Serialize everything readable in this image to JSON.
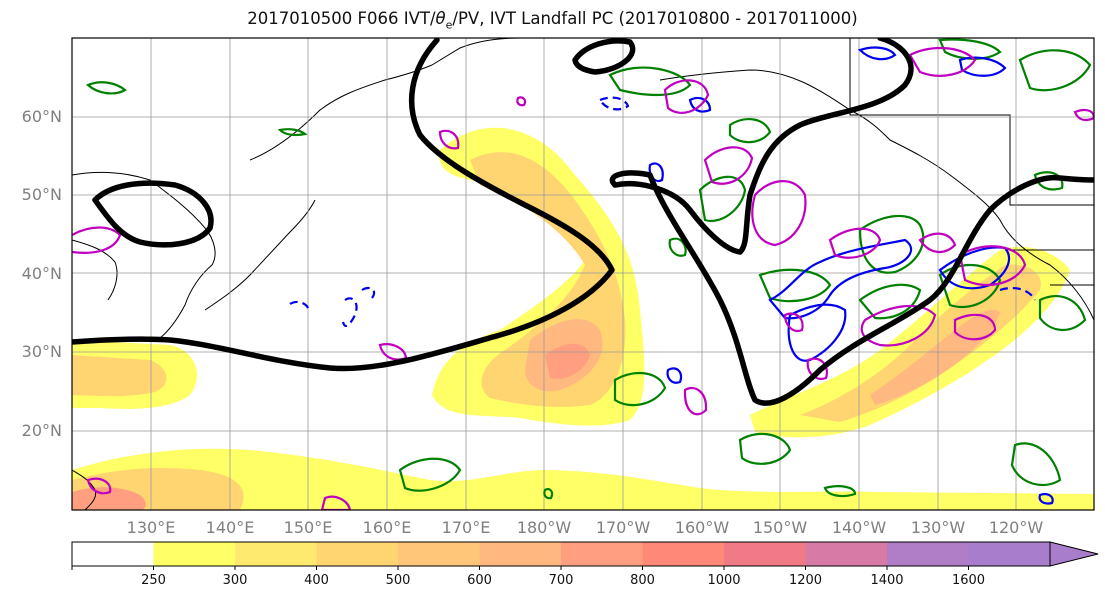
{
  "title": {
    "prefix": "2017010500 F066 IVT/",
    "theta": "θ",
    "sub": "e",
    "suffix": "/PV, IVT Landfall PC (2017010800 - 2017011000)"
  },
  "map": {
    "lat_labels": [
      "60°N",
      "50°N",
      "40°N",
      "30°N",
      "20°N"
    ],
    "lon_labels": [
      "130°E",
      "140°E",
      "150°E",
      "160°E",
      "170°E",
      "180°W",
      "170°W",
      "160°W",
      "150°W",
      "140°W",
      "130°W",
      "120°W"
    ],
    "grid": true,
    "contour_colors": {
      "pv": "#000000",
      "theta_e_warm": "#c000c0",
      "theta_e_cold": "#0000ee",
      "landfall": "#008000"
    }
  },
  "colorbar": {
    "ticks": [
      "250",
      "300",
      "400",
      "500",
      "600",
      "700",
      "800",
      "1000",
      "1200",
      "1400",
      "1600"
    ],
    "colors": [
      "#ffffff",
      "#ffff66",
      "#ffea70",
      "#ffd572",
      "#ffc67a",
      "#ffb880",
      "#ff9f80",
      "#ff8878",
      "#f07a86",
      "#d87aa6",
      "#b07ec6",
      "#a87ecc"
    ],
    "extend": "max"
  }
}
